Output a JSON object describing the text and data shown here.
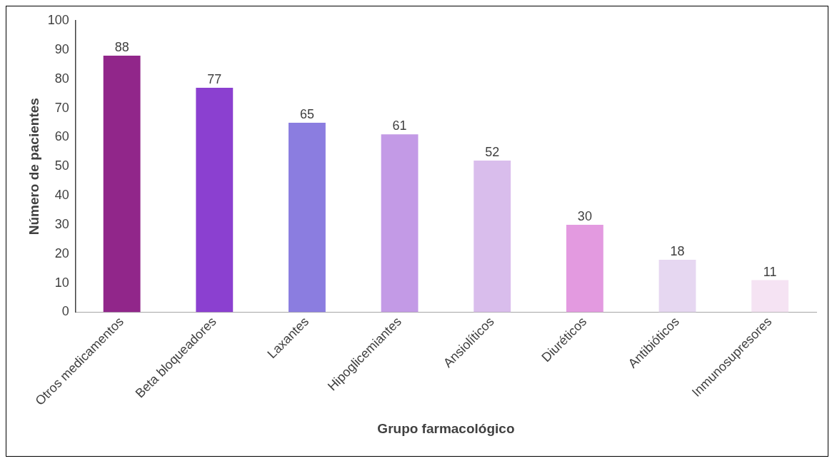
{
  "chart_data": {
    "type": "bar",
    "xlabel": "Grupo farmacológico",
    "ylabel": "Número de pacientes",
    "categories": [
      "Otros medicamentos",
      "Beta bloqueadores",
      "Laxantes",
      "Hipoglicemiantes",
      "Ansiolíticos",
      "Diuréticos",
      "Antibióticos",
      "Inmunosupresores"
    ],
    "values": [
      88,
      77,
      65,
      61,
      52,
      30,
      18,
      11
    ],
    "colors": [
      "#91268a",
      "#8b40d0",
      "#8b7de0",
      "#c39ae6",
      "#d9bdec",
      "#e39ae0",
      "#e6d7f1",
      "#f5e3f3"
    ],
    "ylim": [
      0,
      100
    ],
    "yticks": [
      0,
      10,
      20,
      30,
      40,
      50,
      60,
      70,
      80,
      90,
      100
    ],
    "grid": false,
    "legend": false,
    "data_labels": true
  }
}
